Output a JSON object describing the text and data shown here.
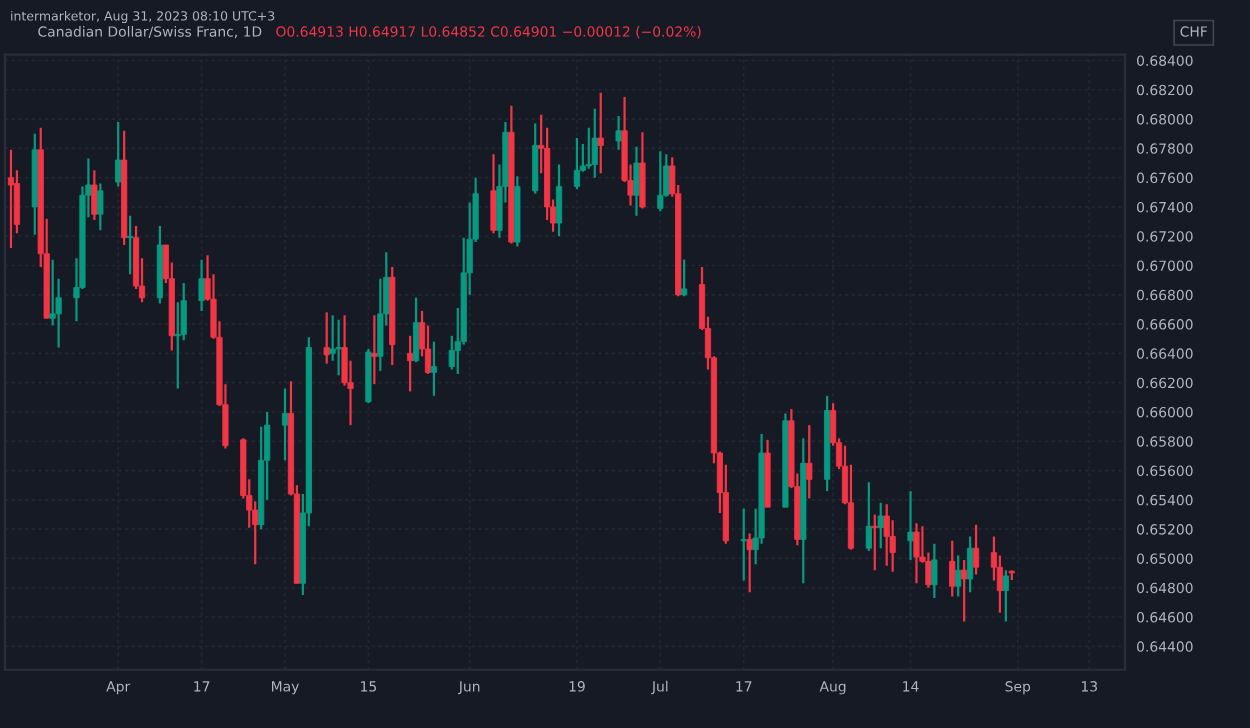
{
  "chart_data": {
    "type": "candlestick",
    "title": "Canadian Dollar/Swiss Franc, 1D",
    "ylabel": "CHF",
    "annotations": [
      "intermarketor, Aug 31, 2023 08:10 UTC+3",
      "O0.64913 H0.64917 L0.64852 C0.64901 −0.00012 (−0.02%)"
    ],
    "x": [
      "2023-03-16",
      "2023-03-17",
      "2023-03-20",
      "2023-03-21",
      "2023-03-22",
      "2023-03-23",
      "2023-03-24",
      "2023-03-27",
      "2023-03-28",
      "2023-03-29",
      "2023-03-30",
      "2023-03-31",
      "2023-04-03",
      "2023-04-04",
      "2023-04-05",
      "2023-04-06",
      "2023-04-07",
      "2023-04-10",
      "2023-04-11",
      "2023-04-12",
      "2023-04-13",
      "2023-04-14",
      "2023-04-17",
      "2023-04-18",
      "2023-04-19",
      "2023-04-20",
      "2023-04-21",
      "2023-04-24",
      "2023-04-25",
      "2023-04-26",
      "2023-04-27",
      "2023-04-28",
      "2023-05-01",
      "2023-05-02",
      "2023-05-03",
      "2023-05-04",
      "2023-05-05",
      "2023-05-08",
      "2023-05-09",
      "2023-05-10",
      "2023-05-11",
      "2023-05-12",
      "2023-05-15",
      "2023-05-16",
      "2023-05-17",
      "2023-05-18",
      "2023-05-19",
      "2023-05-22",
      "2023-05-23",
      "2023-05-24",
      "2023-05-25",
      "2023-05-26",
      "2023-05-29",
      "2023-05-30",
      "2023-05-31",
      "2023-06-01",
      "2023-06-02",
      "2023-06-05",
      "2023-06-06",
      "2023-06-07",
      "2023-06-08",
      "2023-06-09",
      "2023-06-12",
      "2023-06-13",
      "2023-06-14",
      "2023-06-15",
      "2023-06-16",
      "2023-06-19",
      "2023-06-20",
      "2023-06-21",
      "2023-06-22",
      "2023-06-23",
      "2023-06-26",
      "2023-06-27",
      "2023-06-28",
      "2023-06-29",
      "2023-06-30",
      "2023-07-03",
      "2023-07-04",
      "2023-07-05",
      "2023-07-06",
      "2023-07-07",
      "2023-07-10",
      "2023-07-11",
      "2023-07-12",
      "2023-07-13",
      "2023-07-14",
      "2023-07-17",
      "2023-07-18",
      "2023-07-19",
      "2023-07-20",
      "2023-07-21",
      "2023-07-24",
      "2023-07-25",
      "2023-07-26",
      "2023-07-27",
      "2023-07-28",
      "2023-07-31",
      "2023-08-01",
      "2023-08-02",
      "2023-08-03",
      "2023-08-04",
      "2023-08-07",
      "2023-08-08",
      "2023-08-09",
      "2023-08-10",
      "2023-08-11",
      "2023-08-14",
      "2023-08-15",
      "2023-08-16",
      "2023-08-17",
      "2023-08-18",
      "2023-08-21",
      "2023-08-22",
      "2023-08-23",
      "2023-08-24",
      "2023-08-25",
      "2023-08-28",
      "2023-08-29",
      "2023-08-30",
      "2023-08-31"
    ],
    "ohlc": [
      [
        0.676,
        0.6779,
        0.6712,
        0.6755
      ],
      [
        0.6756,
        0.6765,
        0.6722,
        0.6728
      ],
      [
        0.674,
        0.679,
        0.6721,
        0.6779
      ],
      [
        0.6779,
        0.6794,
        0.6699,
        0.6708
      ],
      [
        0.6708,
        0.6732,
        0.6664,
        0.6664
      ],
      [
        0.6664,
        0.6704,
        0.6659,
        0.6667
      ],
      [
        0.6667,
        0.6691,
        0.6644,
        0.6678
      ],
      [
        0.6678,
        0.6705,
        0.6662,
        0.6685
      ],
      [
        0.6685,
        0.6754,
        0.6684,
        0.6748
      ],
      [
        0.6748,
        0.6773,
        0.6733,
        0.6755
      ],
      [
        0.6755,
        0.6765,
        0.6731,
        0.6735
      ],
      [
        0.6735,
        0.6756,
        0.6724,
        0.6751
      ],
      [
        0.6757,
        0.6798,
        0.6754,
        0.6772
      ],
      [
        0.6772,
        0.6792,
        0.6714,
        0.6719
      ],
      [
        0.6719,
        0.6734,
        0.6694,
        0.672
      ],
      [
        0.6719,
        0.6727,
        0.6684,
        0.6686
      ],
      [
        0.6686,
        0.6705,
        0.6675,
        0.6678
      ],
      [
        0.6678,
        0.6727,
        0.6674,
        0.6714
      ],
      [
        0.6714,
        0.6714,
        0.6688,
        0.6691
      ],
      [
        0.6691,
        0.6702,
        0.6642,
        0.6652
      ],
      [
        0.6652,
        0.6675,
        0.6616,
        0.6653
      ],
      [
        0.6653,
        0.6688,
        0.6649,
        0.6676
      ],
      [
        0.6676,
        0.6704,
        0.6669,
        0.6691
      ],
      [
        0.6691,
        0.6707,
        0.6676,
        0.6677
      ],
      [
        0.6677,
        0.6694,
        0.665,
        0.6651
      ],
      [
        0.6651,
        0.6662,
        0.6604,
        0.6605
      ],
      [
        0.6605,
        0.6619,
        0.6575,
        0.6577
      ],
      [
        0.6581,
        0.6582,
        0.6541,
        0.6543
      ],
      [
        0.6543,
        0.6554,
        0.6521,
        0.6533
      ],
      [
        0.6533,
        0.6539,
        0.6496,
        0.6523
      ],
      [
        0.6523,
        0.659,
        0.652,
        0.6567
      ],
      [
        0.6567,
        0.66,
        0.654,
        0.6591
      ],
      [
        0.6591,
        0.6616,
        0.6567,
        0.6599
      ],
      [
        0.6599,
        0.6621,
        0.6543,
        0.6544
      ],
      [
        0.6544,
        0.655,
        0.6483,
        0.6483
      ],
      [
        0.6483,
        0.6544,
        0.6475,
        0.6531
      ],
      [
        0.6531,
        0.6651,
        0.6522,
        0.6644
      ],
      [
        0.6644,
        0.6668,
        0.6633,
        0.6639
      ],
      [
        0.664,
        0.6666,
        0.6635,
        0.6643
      ],
      [
        0.6643,
        0.6663,
        0.6625,
        0.6644
      ],
      [
        0.6644,
        0.6666,
        0.6618,
        0.662
      ],
      [
        0.662,
        0.6635,
        0.6591,
        0.6616
      ],
      [
        0.6607,
        0.6643,
        0.6606,
        0.6641
      ],
      [
        0.664,
        0.6666,
        0.6619,
        0.6638
      ],
      [
        0.6638,
        0.6691,
        0.6628,
        0.6667
      ],
      [
        0.6667,
        0.6709,
        0.6659,
        0.6692
      ],
      [
        0.6692,
        0.6699,
        0.6632,
        0.6646
      ],
      [
        0.664,
        0.6652,
        0.6614,
        0.6635
      ],
      [
        0.6635,
        0.6678,
        0.6634,
        0.6661
      ],
      [
        0.6661,
        0.6669,
        0.6638,
        0.6643
      ],
      [
        0.6643,
        0.6659,
        0.6626,
        0.6627
      ],
      [
        0.6627,
        0.6648,
        0.6611,
        0.6631
      ],
      [
        0.6631,
        0.6652,
        0.6629,
        0.6642
      ],
      [
        0.6642,
        0.6671,
        0.6626,
        0.6648
      ],
      [
        0.6648,
        0.6719,
        0.6646,
        0.6695
      ],
      [
        0.6695,
        0.6743,
        0.668,
        0.6718
      ],
      [
        0.6718,
        0.676,
        0.6716,
        0.6749
      ],
      [
        0.6751,
        0.6776,
        0.6722,
        0.6724
      ],
      [
        0.6724,
        0.6769,
        0.6719,
        0.6754
      ],
      [
        0.6754,
        0.6798,
        0.6743,
        0.6791
      ],
      [
        0.6791,
        0.6809,
        0.6715,
        0.6716
      ],
      [
        0.6716,
        0.6761,
        0.6713,
        0.6754
      ],
      [
        0.6751,
        0.6797,
        0.6749,
        0.6782
      ],
      [
        0.6782,
        0.6803,
        0.6763,
        0.678
      ],
      [
        0.678,
        0.6794,
        0.6731,
        0.674
      ],
      [
        0.674,
        0.6745,
        0.6723,
        0.6729
      ],
      [
        0.6729,
        0.6769,
        0.672,
        0.6754
      ],
      [
        0.6754,
        0.6787,
        0.6752,
        0.6765
      ],
      [
        0.6765,
        0.6783,
        0.6764,
        0.6768
      ],
      [
        0.6768,
        0.6794,
        0.6766,
        0.6769
      ],
      [
        0.6769,
        0.6807,
        0.676,
        0.6787
      ],
      [
        0.6787,
        0.6818,
        0.6763,
        0.6782
      ],
      [
        0.6785,
        0.6802,
        0.6779,
        0.6792
      ],
      [
        0.6792,
        0.6815,
        0.6757,
        0.6758
      ],
      [
        0.6758,
        0.6769,
        0.6741,
        0.6748
      ],
      [
        0.6748,
        0.6781,
        0.6734,
        0.677
      ],
      [
        0.677,
        0.6791,
        0.6739,
        0.674
      ],
      [
        0.6739,
        0.6778,
        0.6737,
        0.6748
      ],
      [
        0.6748,
        0.6776,
        0.6747,
        0.6768
      ],
      [
        0.6768,
        0.6774,
        0.6747,
        0.6749
      ],
      [
        0.6749,
        0.6755,
        0.6679,
        0.668
      ],
      [
        0.668,
        0.6704,
        0.6679,
        0.6684
      ],
      [
        0.6687,
        0.6699,
        0.6656,
        0.6657
      ],
      [
        0.6657,
        0.6665,
        0.6629,
        0.6637
      ],
      [
        0.6637,
        0.6638,
        0.6565,
        0.6572
      ],
      [
        0.6572,
        0.6573,
        0.6531,
        0.6545
      ],
      [
        0.6545,
        0.6564,
        0.651,
        0.6512
      ],
      [
        0.6512,
        0.6534,
        0.6485,
        0.6513
      ],
      [
        0.6513,
        0.6517,
        0.6477,
        0.6506
      ],
      [
        0.6506,
        0.6534,
        0.6496,
        0.6514
      ],
      [
        0.6514,
        0.6585,
        0.651,
        0.6572
      ],
      [
        0.6572,
        0.6581,
        0.6535,
        0.6535
      ],
      [
        0.6535,
        0.6599,
        0.6535,
        0.6594
      ],
      [
        0.6594,
        0.6602,
        0.6548,
        0.6549
      ],
      [
        0.6549,
        0.6558,
        0.6509,
        0.6513
      ],
      [
        0.6513,
        0.6582,
        0.6483,
        0.6565
      ],
      [
        0.6565,
        0.6591,
        0.6541,
        0.6554
      ],
      [
        0.6554,
        0.6611,
        0.6546,
        0.6601
      ],
      [
        0.6601,
        0.6606,
        0.6577,
        0.6579
      ],
      [
        0.6579,
        0.6582,
        0.6561,
        0.6563
      ],
      [
        0.6563,
        0.6577,
        0.6537,
        0.6538
      ],
      [
        0.6538,
        0.6564,
        0.6506,
        0.6507
      ],
      [
        0.6507,
        0.6552,
        0.6505,
        0.6522
      ],
      [
        0.6522,
        0.653,
        0.6492,
        0.6521
      ],
      [
        0.6521,
        0.6538,
        0.6507,
        0.6529
      ],
      [
        0.6529,
        0.6537,
        0.6495,
        0.6515
      ],
      [
        0.6515,
        0.6526,
        0.6491,
        0.6504
      ],
      [
        0.6512,
        0.6546,
        0.6499,
        0.6518
      ],
      [
        0.6518,
        0.6524,
        0.6483,
        0.6501
      ],
      [
        0.6501,
        0.6522,
        0.6497,
        0.6498
      ],
      [
        0.6498,
        0.6504,
        0.648,
        0.6482
      ],
      [
        0.6482,
        0.651,
        0.6473,
        0.6499
      ],
      [
        0.6498,
        0.6512,
        0.6474,
        0.6481
      ],
      [
        0.6481,
        0.6502,
        0.6474,
        0.6492
      ],
      [
        0.6492,
        0.6499,
        0.6457,
        0.6486
      ],
      [
        0.6486,
        0.6515,
        0.6477,
        0.6507
      ],
      [
        0.6507,
        0.6523,
        0.6489,
        0.6494
      ],
      [
        0.6504,
        0.6515,
        0.6485,
        0.6494
      ],
      [
        0.6494,
        0.6502,
        0.6463,
        0.6478
      ],
      [
        0.6478,
        0.6492,
        0.6457,
        0.6488
      ],
      [
        0.64913,
        0.64917,
        0.64852,
        0.64901
      ]
    ],
    "colors": [
      "#f23645",
      "#f23645",
      "#089981",
      "#f23645",
      "#f23645",
      "#089981",
      "#089981",
      "#089981",
      "#089981",
      "#089981",
      "#f23645",
      "#089981",
      "#089981",
      "#f23645",
      "#089981",
      "#f23645",
      "#f23645",
      "#089981",
      "#f23645",
      "#f23645",
      "#089981",
      "#089981",
      "#089981",
      "#f23645",
      "#f23645",
      "#f23645",
      "#f23645",
      "#f23645",
      "#f23645",
      "#f23645",
      "#089981",
      "#089981",
      "#089981",
      "#f23645",
      "#f23645",
      "#089981",
      "#089981",
      "#f23645",
      "#089981",
      "#089981",
      "#f23645",
      "#f23645",
      "#089981",
      "#f23645",
      "#089981",
      "#089981",
      "#f23645",
      "#f23645",
      "#089981",
      "#f23645",
      "#f23645",
      "#089981",
      "#089981",
      "#089981",
      "#089981",
      "#089981",
      "#089981",
      "#f23645",
      "#089981",
      "#089981",
      "#f23645",
      "#089981",
      "#089981",
      "#f23645",
      "#f23645",
      "#f23645",
      "#089981",
      "#089981",
      "#089981",
      "#089981",
      "#089981",
      "#f23645",
      "#089981",
      "#f23645",
      "#f23645",
      "#089981",
      "#f23645",
      "#089981",
      "#089981",
      "#f23645",
      "#f23645",
      "#089981",
      "#f23645",
      "#f23645",
      "#f23645",
      "#f23645",
      "#f23645",
      "#089981",
      "#f23645",
      "#089981",
      "#089981",
      "#f23645",
      "#089981",
      "#f23645",
      "#f23645",
      "#089981",
      "#f23645",
      "#089981",
      "#f23645",
      "#f23645",
      "#f23645",
      "#f23645",
      "#089981",
      "#f23645",
      "#089981",
      "#f23645",
      "#f23645",
      "#089981",
      "#f23645",
      "#f23645",
      "#f23645",
      "#089981",
      "#f23645",
      "#089981",
      "#f23645",
      "#089981",
      "#f23645",
      "#f23645",
      "#f23645",
      "#089981",
      "#f23645"
    ],
    "xlim": [
      "2023-03-15",
      "2023-09-19"
    ],
    "xticks": [
      {
        "value": "2023-04-03",
        "label": "Apr"
      },
      {
        "value": "2023-04-17",
        "label": "17"
      },
      {
        "value": "2023-05-01",
        "label": "May"
      },
      {
        "value": "2023-05-15",
        "label": "15"
      },
      {
        "value": "2023-06-01",
        "label": "Jun"
      },
      {
        "value": "2023-06-19",
        "label": "19"
      },
      {
        "value": "2023-07-03",
        "label": "Jul"
      },
      {
        "value": "2023-07-17",
        "label": "17"
      },
      {
        "value": "2023-08-01",
        "label": "Aug"
      },
      {
        "value": "2023-08-14",
        "label": "14"
      },
      {
        "value": "2023-09-01",
        "label": "Sep"
      },
      {
        "value": "2023-09-13",
        "label": "13"
      }
    ],
    "ylim": [
      0.6424,
      0.6844
    ],
    "yticks": [
      {
        "value": 0.644,
        "label": "0.64400"
      },
      {
        "value": 0.646,
        "label": "0.64600"
      },
      {
        "value": 0.648,
        "label": "0.64800"
      },
      {
        "value": 0.65,
        "label": "0.65000"
      },
      {
        "value": 0.652,
        "label": "0.65200"
      },
      {
        "value": 0.654,
        "label": "0.65400"
      },
      {
        "value": 0.656,
        "label": "0.65600"
      },
      {
        "value": 0.658,
        "label": "0.65800"
      },
      {
        "value": 0.66,
        "label": "0.66000"
      },
      {
        "value": 0.662,
        "label": "0.66200"
      },
      {
        "value": 0.664,
        "label": "0.66400"
      },
      {
        "value": 0.666,
        "label": "0.66600"
      },
      {
        "value": 0.668,
        "label": "0.66800"
      },
      {
        "value": 0.67,
        "label": "0.67000"
      },
      {
        "value": 0.672,
        "label": "0.67200"
      },
      {
        "value": 0.674,
        "label": "0.67400"
      },
      {
        "value": 0.676,
        "label": "0.67600"
      },
      {
        "value": 0.678,
        "label": "0.67800"
      },
      {
        "value": 0.68,
        "label": "0.68000"
      },
      {
        "value": 0.682,
        "label": "0.68200"
      },
      {
        "value": 0.684,
        "label": "0.68400"
      }
    ],
    "grid": true
  }
}
